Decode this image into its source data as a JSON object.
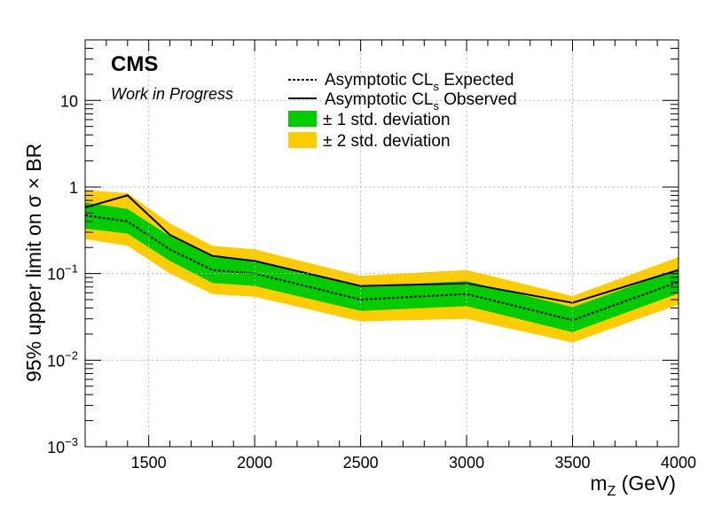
{
  "chart_data": {
    "type": "line",
    "x": [
      1200,
      1400,
      1600,
      1800,
      2000,
      2500,
      3000,
      3500,
      4000
    ],
    "series": [
      {
        "name": "Asymptotic CL_s Expected",
        "style": "dashed",
        "values": [
          0.47,
          0.4,
          0.19,
          0.11,
          0.1,
          0.05,
          0.058,
          0.029,
          0.08
        ]
      },
      {
        "name": "Asymptotic CL_s Observed",
        "style": "solid",
        "values": [
          0.58,
          0.8,
          0.28,
          0.16,
          0.14,
          0.072,
          0.077,
          0.046,
          0.11
        ]
      }
    ],
    "bands": {
      "one_sigma": {
        "name": "± 1 std. deviation",
        "color": "#00cc00",
        "low": [
          0.33,
          0.29,
          0.14,
          0.078,
          0.072,
          0.037,
          0.042,
          0.021,
          0.059
        ],
        "high": [
          0.66,
          0.56,
          0.27,
          0.155,
          0.14,
          0.07,
          0.082,
          0.041,
          0.112
        ]
      },
      "two_sigma": {
        "name": "± 2 std. deviation",
        "color": "#ffcc00",
        "low": [
          0.25,
          0.21,
          0.1,
          0.058,
          0.054,
          0.028,
          0.03,
          0.016,
          0.044
        ],
        "high": [
          0.92,
          0.85,
          0.38,
          0.21,
          0.19,
          0.094,
          0.11,
          0.055,
          0.155
        ]
      }
    },
    "xlim": [
      1200,
      4000
    ],
    "ylim": [
      0.001,
      50
    ],
    "yscale": "log",
    "x_ticks": [
      1500,
      2000,
      2500,
      3000,
      3500,
      4000
    ],
    "y_ticks": [
      {
        "value": 0.001,
        "label": "10",
        "exp": "−3"
      },
      {
        "value": 0.01,
        "label": "10",
        "exp": "−2"
      },
      {
        "value": 0.1,
        "label": "10",
        "exp": "−1"
      },
      {
        "value": 1,
        "label": "1",
        "exp": ""
      },
      {
        "value": 10,
        "label": "10",
        "exp": ""
      }
    ],
    "xlabel_main": "m",
    "xlabel_sub": "Z",
    "xlabel_rest": " (GeV)",
    "ylabel": "95% upper limit on  σ × BR",
    "grid": true,
    "legend_position": "top-center"
  },
  "labels": {
    "experiment": "CMS",
    "status": "Work in Progress"
  },
  "legend": {
    "expected_main": "Asymptotic CL",
    "expected_sub": "s",
    "expected_rest": " Expected",
    "observed_main": "Asymptotic CL",
    "observed_sub": "s",
    "observed_rest": " Observed",
    "one_sigma": "± 1 std. deviation",
    "two_sigma": "± 2 std. deviation"
  }
}
